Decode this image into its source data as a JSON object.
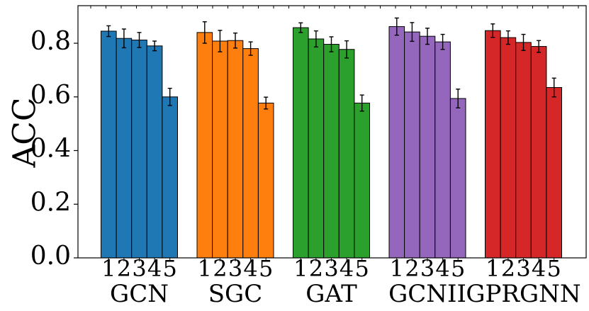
{
  "chart_data": {
    "type": "bar",
    "title": "",
    "xlabel": "",
    "ylabel": "ACC",
    "ylim": [
      0.0,
      0.94
    ],
    "yticks": [
      0.0,
      0.2,
      0.4,
      0.6,
      0.8
    ],
    "ytick_labels": [
      "0.0",
      "0.2",
      "0.4",
      "0.6",
      "0.8"
    ],
    "grid": false,
    "legend": "none",
    "groups": [
      {
        "name": "GCN",
        "color": "#1f77b4",
        "sub_labels": [
          "1",
          "2",
          "3",
          "4",
          "5"
        ],
        "values": [
          0.845,
          0.818,
          0.812,
          0.79,
          0.6
        ],
        "errors": [
          0.02,
          0.035,
          0.028,
          0.018,
          0.032
        ]
      },
      {
        "name": "SGC",
        "color": "#ff7f0e",
        "sub_labels": [
          "1",
          "2",
          "3",
          "4",
          "5"
        ],
        "values": [
          0.84,
          0.808,
          0.81,
          0.78,
          0.577
        ],
        "errors": [
          0.04,
          0.04,
          0.028,
          0.025,
          0.022
        ]
      },
      {
        "name": "GAT",
        "color": "#2ca02c",
        "sub_labels": [
          "1",
          "2",
          "3",
          "4",
          "5"
        ],
        "values": [
          0.858,
          0.816,
          0.796,
          0.777,
          0.577
        ],
        "errors": [
          0.018,
          0.03,
          0.028,
          0.032,
          0.03
        ]
      },
      {
        "name": "GCNII",
        "color": "#9467bd",
        "sub_labels": [
          "1",
          "2",
          "3",
          "4",
          "5"
        ],
        "values": [
          0.862,
          0.842,
          0.826,
          0.805,
          0.594
        ],
        "errors": [
          0.032,
          0.035,
          0.03,
          0.028,
          0.035
        ]
      },
      {
        "name": "GPRGNN",
        "color": "#d62728",
        "sub_labels": [
          "1",
          "2",
          "3",
          "4",
          "5"
        ],
        "values": [
          0.847,
          0.821,
          0.803,
          0.788,
          0.635
        ],
        "errors": [
          0.025,
          0.025,
          0.03,
          0.022,
          0.035
        ]
      }
    ]
  }
}
